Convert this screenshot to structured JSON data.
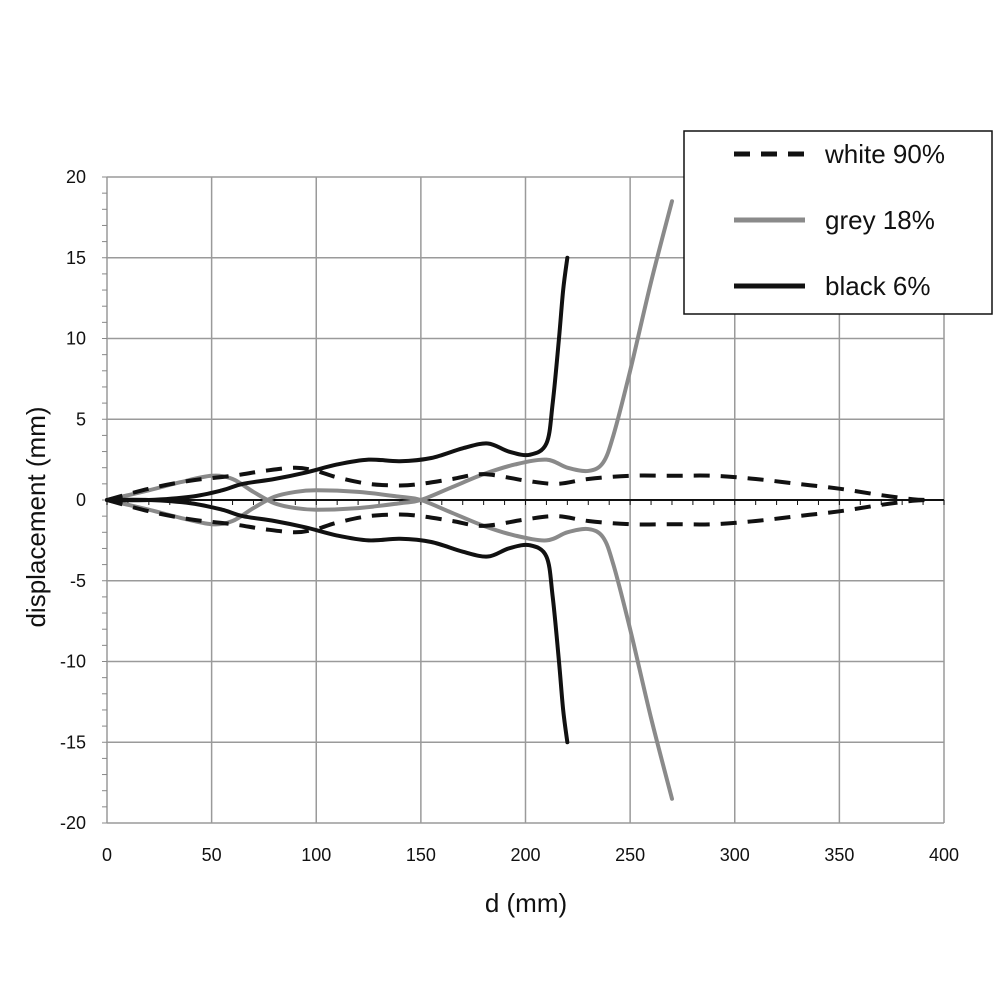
{
  "chart_data": {
    "type": "line",
    "title": "",
    "xlabel": "d (mm)",
    "ylabel": "displacement (mm)",
    "xlim": [
      0,
      400
    ],
    "ylim": [
      -20,
      20
    ],
    "x_ticks": [
      0,
      50,
      100,
      150,
      200,
      250,
      300,
      350,
      400
    ],
    "y_ticks": [
      -20,
      -15,
      -10,
      -5,
      0,
      5,
      10,
      15,
      20
    ],
    "grid": true,
    "legend_position": "top-right",
    "series": [
      {
        "name": "white 90%",
        "color": "#111111",
        "style": "dashed",
        "x": [
          0,
          20,
          40,
          60,
          75,
          90,
          100,
          110,
          125,
          140,
          150,
          165,
          180,
          200,
          215,
          230,
          250,
          270,
          290,
          310,
          330,
          350,
          370,
          385,
          393
        ],
        "y": [
          0,
          0.7,
          1.2,
          1.5,
          1.8,
          2.0,
          1.8,
          1.4,
          1.0,
          0.9,
          1.0,
          1.3,
          1.6,
          1.2,
          1.0,
          1.3,
          1.5,
          1.5,
          1.5,
          1.3,
          1.0,
          0.7,
          0.3,
          0.05,
          0
        ]
      },
      {
        "name": "white 90%",
        "color": "#111111",
        "style": "dashed",
        "x": [
          0,
          20,
          40,
          60,
          75,
          90,
          100,
          110,
          125,
          140,
          150,
          165,
          180,
          200,
          215,
          230,
          250,
          270,
          290,
          310,
          330,
          350,
          370,
          385,
          393
        ],
        "y": [
          0,
          -0.7,
          -1.2,
          -1.5,
          -1.8,
          -2.0,
          -1.8,
          -1.4,
          -1.0,
          -0.9,
          -1.0,
          -1.3,
          -1.6,
          -1.2,
          -1.0,
          -1.3,
          -1.5,
          -1.5,
          -1.5,
          -1.3,
          -1.0,
          -0.7,
          -0.3,
          -0.05,
          0
        ]
      },
      {
        "name": "grey 18%",
        "color": "#8a8a8a",
        "style": "solid",
        "x": [
          0,
          20,
          35,
          50,
          60,
          70,
          80,
          90,
          100,
          120,
          140,
          150,
          165,
          180,
          195,
          210,
          220,
          230,
          237,
          242,
          250,
          260,
          270
        ],
        "y": [
          0,
          0.6,
          1.1,
          1.5,
          1.3,
          0.5,
          -0.2,
          -0.5,
          -0.6,
          -0.5,
          -0.2,
          0,
          0.8,
          1.6,
          2.2,
          2.5,
          2.0,
          1.8,
          2.3,
          4.0,
          8.0,
          13.5,
          18.5
        ]
      },
      {
        "name": "grey 18%",
        "color": "#8a8a8a",
        "style": "solid",
        "x": [
          0,
          20,
          35,
          50,
          60,
          70,
          80,
          90,
          100,
          120,
          140,
          150,
          165,
          180,
          195,
          210,
          220,
          230,
          237,
          242,
          250,
          260,
          270
        ],
        "y": [
          0,
          -0.6,
          -1.1,
          -1.5,
          -1.3,
          -0.5,
          0.2,
          0.5,
          0.6,
          0.5,
          0.2,
          0,
          -0.8,
          -1.6,
          -2.2,
          -2.5,
          -2.0,
          -1.8,
          -2.3,
          -4.0,
          -8.0,
          -13.5,
          -18.5
        ]
      },
      {
        "name": "black 6%",
        "color": "#111111",
        "style": "solid",
        "x": [
          0,
          20,
          40,
          55,
          65,
          80,
          95,
          110,
          125,
          140,
          155,
          170,
          182,
          192,
          202,
          210,
          213,
          216,
          218,
          220
        ],
        "y": [
          0,
          0,
          0.2,
          0.6,
          1.0,
          1.3,
          1.7,
          2.2,
          2.5,
          2.4,
          2.6,
          3.2,
          3.5,
          3.0,
          2.8,
          3.5,
          6.0,
          10.0,
          13.0,
          15.0
        ]
      },
      {
        "name": "black 6%",
        "color": "#111111",
        "style": "solid",
        "x": [
          0,
          20,
          40,
          55,
          65,
          80,
          95,
          110,
          125,
          140,
          155,
          170,
          182,
          192,
          202,
          210,
          213,
          216,
          218,
          220
        ],
        "y": [
          0,
          0,
          -0.2,
          -0.6,
          -1.0,
          -1.3,
          -1.7,
          -2.2,
          -2.5,
          -2.4,
          -2.6,
          -3.2,
          -3.5,
          -3.0,
          -2.8,
          -3.5,
          -6.0,
          -10.0,
          -13.0,
          -15.0
        ]
      }
    ],
    "legend": [
      {
        "label": "white 90%",
        "color": "#111111",
        "style": "dashed"
      },
      {
        "label": "grey 18%",
        "color": "#8a8a8a",
        "style": "solid"
      },
      {
        "label": "black 6%",
        "color": "#111111",
        "style": "solid"
      }
    ]
  }
}
